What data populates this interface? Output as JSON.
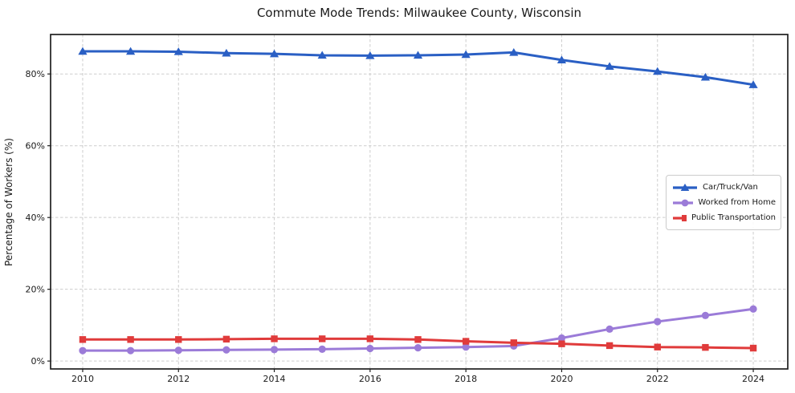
{
  "chart_data": {
    "type": "line",
    "title": "Commute Mode Trends: Milwaukee County, Wisconsin",
    "xlabel": "",
    "ylabel": "Percentage of Workers (%)",
    "x": [
      2010,
      2011,
      2012,
      2013,
      2014,
      2015,
      2016,
      2017,
      2018,
      2019,
      2020,
      2021,
      2022,
      2023,
      2024
    ],
    "x_ticks": [
      2010,
      2012,
      2014,
      2016,
      2018,
      2020,
      2022,
      2024
    ],
    "y_ticks": [
      0,
      20,
      40,
      60,
      80
    ],
    "y_tick_suffix": "%",
    "xlim": [
      2009.33,
      2024.72
    ],
    "ylim": [
      -2.2,
      91
    ],
    "grid": true,
    "legend_position": "center-right",
    "series": [
      {
        "name": "Car/Truck/Van",
        "color": "#2a5fc4",
        "marker": "triangle",
        "values": [
          86.3,
          86.3,
          86.2,
          85.8,
          85.6,
          85.2,
          85.1,
          85.2,
          85.4,
          86.0,
          83.9,
          82.1,
          80.7,
          79.1,
          77.0
        ]
      },
      {
        "name": "Worked from Home",
        "color": "#9b7bd8",
        "marker": "circle",
        "values": [
          2.9,
          2.9,
          3.0,
          3.1,
          3.2,
          3.3,
          3.5,
          3.7,
          3.9,
          4.2,
          6.4,
          8.9,
          11.0,
          12.7,
          14.5
        ]
      },
      {
        "name": "Public Transportation",
        "color": "#e03b3b",
        "marker": "square",
        "values": [
          6.0,
          6.0,
          6.0,
          6.1,
          6.2,
          6.2,
          6.2,
          6.0,
          5.5,
          5.1,
          4.8,
          4.3,
          3.9,
          3.8,
          3.6
        ]
      }
    ]
  }
}
